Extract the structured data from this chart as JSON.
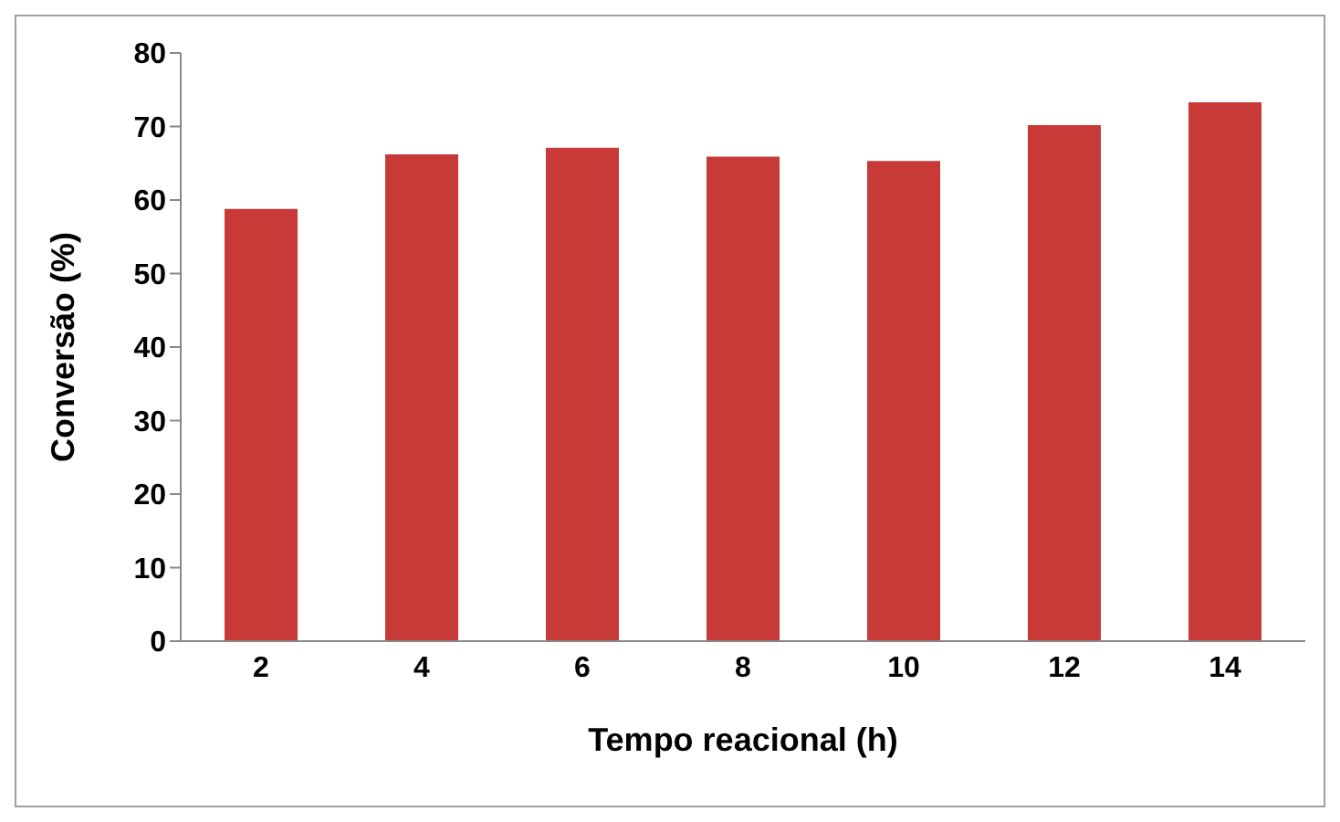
{
  "chart_data": {
    "type": "bar",
    "xlabel": "Tempo reacional (h)",
    "ylabel": "Conversão (%)",
    "categories": [
      "2",
      "4",
      "6",
      "8",
      "10",
      "12",
      "14"
    ],
    "values": [
      58.8,
      66.2,
      67.1,
      65.9,
      65.3,
      70.2,
      73.3
    ],
    "color": "#c83a38",
    "ylim": [
      0,
      80
    ],
    "yticks": [
      0,
      10,
      20,
      30,
      40,
      50,
      60,
      70,
      80
    ],
    "grid": false,
    "legend": false
  }
}
